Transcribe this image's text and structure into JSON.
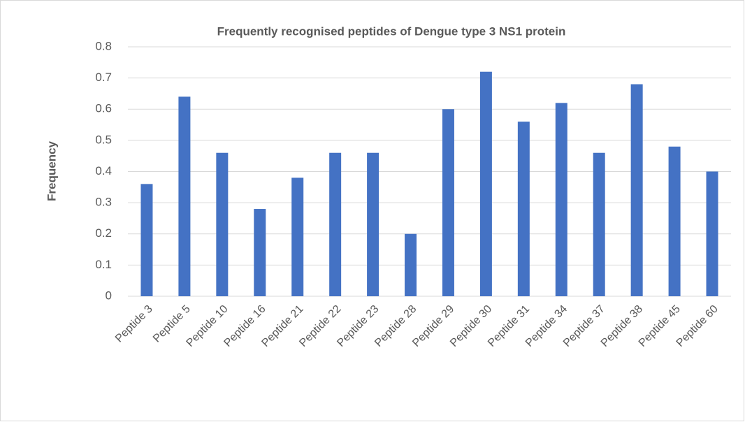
{
  "chart_data": {
    "type": "bar",
    "title": "Frequently recognised peptides of Dengue type 3 NS1 protein",
    "y_label": "Frequency",
    "categories": [
      "Peptide 3",
      "Peptide 5",
      "Peptide 10",
      "Peptide 16",
      "Peptide 21",
      "Peptide 22",
      "Peptide 23",
      "Peptide 28",
      "Peptide 29",
      "Peptide 30",
      "Peptide 31",
      "Peptide 34",
      "Peptide 37",
      "Peptide 38",
      "Peptide 45",
      "Peptide 60"
    ],
    "values": [
      0.36,
      0.64,
      0.46,
      0.28,
      0.38,
      0.46,
      0.46,
      0.2,
      0.6,
      0.72,
      0.56,
      0.62,
      0.46,
      0.68,
      0.48,
      0.4
    ],
    "color": "#4472c4",
    "ylim": [
      0,
      0.8
    ],
    "yticks": [
      0,
      0.1,
      0.2,
      0.3,
      0.4,
      0.5,
      0.6,
      0.7,
      0.8
    ],
    "grid": true
  }
}
